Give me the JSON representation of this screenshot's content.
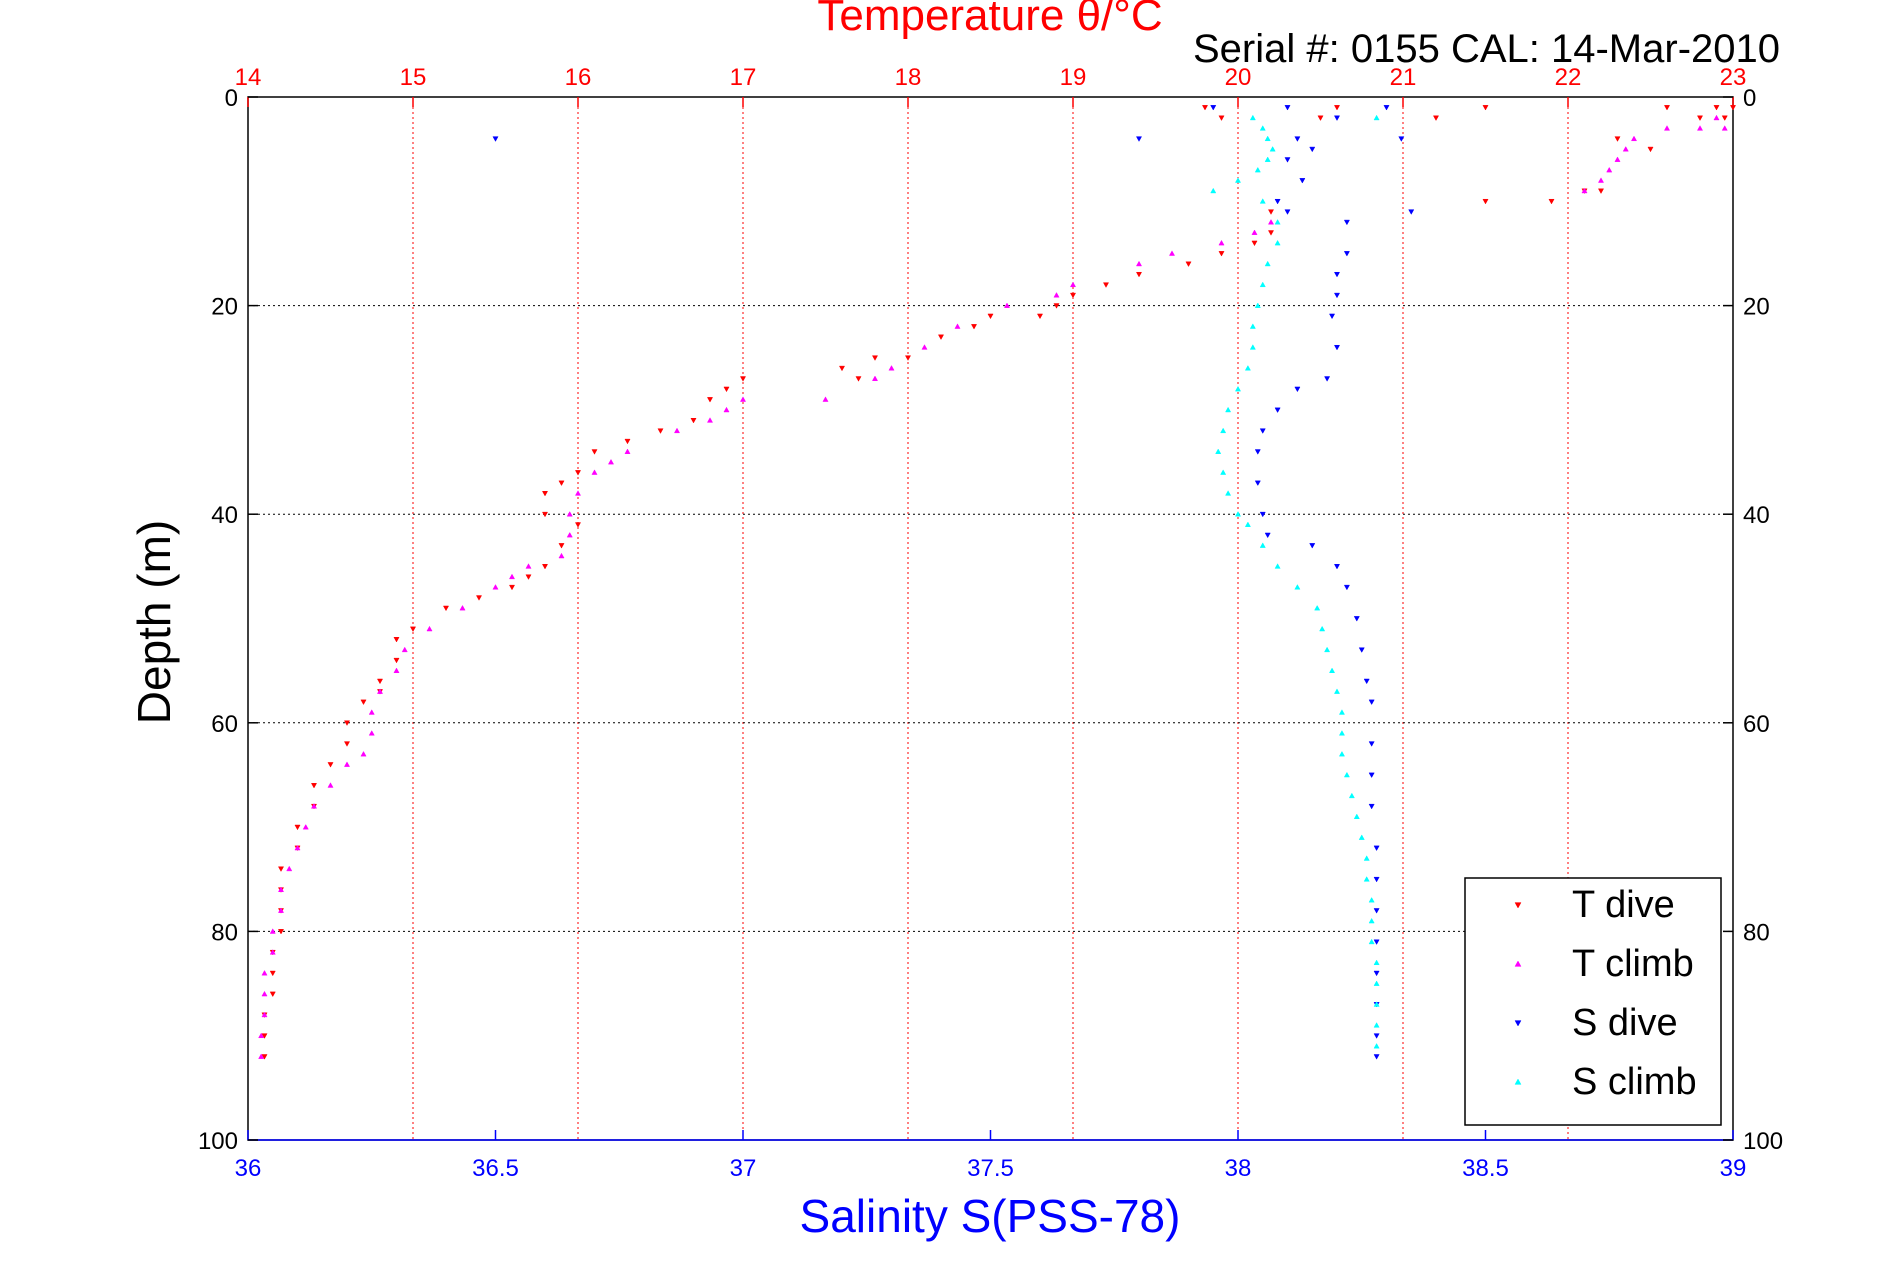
{
  "chart_data": {
    "type": "scatter",
    "title": "Temperature θ/°C",
    "subtitle": "Serial #: 0155  CAL: 14-Mar-2010",
    "ylabel": "Depth (m)",
    "ylim": [
      0,
      100
    ],
    "y_reversed": true,
    "y_ticks": [
      "0",
      "20",
      "40",
      "60",
      "80",
      "100"
    ],
    "x_top": {
      "label": "Temperature θ/°C",
      "range": [
        14,
        23
      ],
      "ticks": [
        "14",
        "15",
        "16",
        "17",
        "18",
        "19",
        "20",
        "21",
        "22",
        "23"
      ]
    },
    "x_bottom": {
      "label": "Salinity S(PSS-78)",
      "range": [
        36,
        39
      ],
      "ticks": [
        "36",
        "36.5",
        "37",
        "37.5",
        "38",
        "38.5",
        "39"
      ]
    },
    "grid": true,
    "legend_position": "bottom-right",
    "colors": {
      "temperature_axis": "#ff0000",
      "salinity_axis": "#0000ff",
      "t_dive": "#ff0000",
      "t_climb": "#ff00ff",
      "s_dive": "#0000ff",
      "s_climb": "#00ffff"
    },
    "series": [
      {
        "name": "T dive",
        "axis": "temperature",
        "marker": "down-triangle",
        "color": "#ff0000",
        "points": [
          [
            19.8,
            1
          ],
          [
            20.6,
            1
          ],
          [
            21.5,
            1
          ],
          [
            22.6,
            1
          ],
          [
            22.9,
            1
          ],
          [
            23.0,
            1
          ],
          [
            19.9,
            2
          ],
          [
            20.5,
            2
          ],
          [
            21.2,
            2
          ],
          [
            22.8,
            2
          ],
          [
            22.95,
            2
          ],
          [
            22.3,
            4
          ],
          [
            22.5,
            5
          ],
          [
            22.2,
            9
          ],
          [
            21.5,
            10
          ],
          [
            21.9,
            10
          ],
          [
            22.1,
            9
          ],
          [
            20.2,
            11
          ],
          [
            20.2,
            13
          ],
          [
            20.1,
            14
          ],
          [
            19.9,
            15
          ],
          [
            19.7,
            16
          ],
          [
            19.4,
            17
          ],
          [
            19.2,
            18
          ],
          [
            19.0,
            19
          ],
          [
            18.9,
            20
          ],
          [
            18.8,
            21
          ],
          [
            18.5,
            21
          ],
          [
            18.4,
            22
          ],
          [
            18.2,
            23
          ],
          [
            18.0,
            25
          ],
          [
            17.8,
            25
          ],
          [
            17.6,
            26
          ],
          [
            17.7,
            27
          ],
          [
            17.0,
            27
          ],
          [
            16.9,
            28
          ],
          [
            16.8,
            29
          ],
          [
            16.7,
            31
          ],
          [
            16.5,
            32
          ],
          [
            16.3,
            33
          ],
          [
            16.1,
            34
          ],
          [
            16.0,
            36
          ],
          [
            15.9,
            37
          ],
          [
            15.8,
            38
          ],
          [
            15.8,
            40
          ],
          [
            16.0,
            41
          ],
          [
            15.9,
            43
          ],
          [
            15.8,
            45
          ],
          [
            15.7,
            46
          ],
          [
            15.6,
            47
          ],
          [
            15.4,
            48
          ],
          [
            15.2,
            49
          ],
          [
            15.0,
            51
          ],
          [
            14.9,
            52
          ],
          [
            14.9,
            54
          ],
          [
            14.8,
            56
          ],
          [
            14.8,
            57
          ],
          [
            14.7,
            58
          ],
          [
            14.6,
            60
          ],
          [
            14.6,
            62
          ],
          [
            14.5,
            64
          ],
          [
            14.4,
            66
          ],
          [
            14.4,
            68
          ],
          [
            14.3,
            70
          ],
          [
            14.3,
            72
          ],
          [
            14.2,
            74
          ],
          [
            14.2,
            76
          ],
          [
            14.2,
            78
          ],
          [
            14.2,
            80
          ],
          [
            14.15,
            82
          ],
          [
            14.15,
            84
          ],
          [
            14.15,
            86
          ],
          [
            14.1,
            88
          ],
          [
            14.1,
            90
          ],
          [
            14.1,
            92
          ]
        ]
      },
      {
        "name": "T climb",
        "axis": "temperature",
        "marker": "up-triangle",
        "color": "#ff00ff",
        "points": [
          [
            22.9,
            2
          ],
          [
            22.95,
            3
          ],
          [
            22.8,
            3
          ],
          [
            22.6,
            3
          ],
          [
            22.4,
            4
          ],
          [
            22.35,
            5
          ],
          [
            22.3,
            6
          ],
          [
            22.25,
            7
          ],
          [
            22.2,
            8
          ],
          [
            22.1,
            9
          ],
          [
            20.2,
            12
          ],
          [
            20.1,
            13
          ],
          [
            19.9,
            14
          ],
          [
            19.6,
            15
          ],
          [
            19.4,
            16
          ],
          [
            19.0,
            18
          ],
          [
            18.9,
            19
          ],
          [
            18.6,
            20
          ],
          [
            18.3,
            22
          ],
          [
            18.1,
            24
          ],
          [
            17.9,
            26
          ],
          [
            17.8,
            27
          ],
          [
            17.5,
            29
          ],
          [
            17.0,
            29
          ],
          [
            16.9,
            30
          ],
          [
            16.8,
            31
          ],
          [
            16.6,
            32
          ],
          [
            16.3,
            34
          ],
          [
            16.2,
            35
          ],
          [
            16.1,
            36
          ],
          [
            16.0,
            38
          ],
          [
            15.95,
            40
          ],
          [
            15.95,
            42
          ],
          [
            15.9,
            44
          ],
          [
            15.7,
            45
          ],
          [
            15.6,
            46
          ],
          [
            15.5,
            47
          ],
          [
            15.3,
            49
          ],
          [
            15.1,
            51
          ],
          [
            14.95,
            53
          ],
          [
            14.9,
            55
          ],
          [
            14.8,
            57
          ],
          [
            14.75,
            59
          ],
          [
            14.75,
            61
          ],
          [
            14.7,
            63
          ],
          [
            14.6,
            64
          ],
          [
            14.5,
            66
          ],
          [
            14.4,
            68
          ],
          [
            14.35,
            70
          ],
          [
            14.3,
            72
          ],
          [
            14.25,
            74
          ],
          [
            14.2,
            76
          ],
          [
            14.2,
            78
          ],
          [
            14.15,
            80
          ],
          [
            14.15,
            82
          ],
          [
            14.1,
            84
          ],
          [
            14.1,
            86
          ],
          [
            14.1,
            88
          ],
          [
            14.08,
            90
          ],
          [
            14.08,
            92
          ]
        ]
      },
      {
        "name": "S dive",
        "axis": "salinity",
        "marker": "down-triangle",
        "color": "#0000ff",
        "points": [
          [
            36.5,
            4
          ],
          [
            37.8,
            4
          ],
          [
            37.95,
            1
          ],
          [
            38.1,
            1
          ],
          [
            38.2,
            2
          ],
          [
            38.3,
            1
          ],
          [
            38.12,
            4
          ],
          [
            38.15,
            5
          ],
          [
            38.1,
            6
          ],
          [
            38.13,
            8
          ],
          [
            38.08,
            10
          ],
          [
            38.1,
            11
          ],
          [
            38.33,
            4
          ],
          [
            38.35,
            11
          ],
          [
            38.22,
            12
          ],
          [
            38.22,
            15
          ],
          [
            38.2,
            17
          ],
          [
            38.2,
            19
          ],
          [
            38.19,
            21
          ],
          [
            38.2,
            24
          ],
          [
            38.18,
            27
          ],
          [
            38.12,
            28
          ],
          [
            38.08,
            30
          ],
          [
            38.05,
            32
          ],
          [
            38.04,
            34
          ],
          [
            38.04,
            37
          ],
          [
            38.05,
            40
          ],
          [
            38.06,
            42
          ],
          [
            38.15,
            43
          ],
          [
            38.2,
            45
          ],
          [
            38.22,
            47
          ],
          [
            38.24,
            50
          ],
          [
            38.25,
            53
          ],
          [
            38.26,
            56
          ],
          [
            38.27,
            58
          ],
          [
            38.27,
            62
          ],
          [
            38.27,
            65
          ],
          [
            38.27,
            68
          ],
          [
            38.28,
            72
          ],
          [
            38.28,
            75
          ],
          [
            38.28,
            78
          ],
          [
            38.28,
            81
          ],
          [
            38.28,
            84
          ],
          [
            38.28,
            87
          ],
          [
            38.28,
            90
          ],
          [
            38.28,
            92
          ]
        ]
      },
      {
        "name": "S climb",
        "axis": "salinity",
        "marker": "up-triangle",
        "color": "#00ffff",
        "points": [
          [
            38.28,
            2
          ],
          [
            38.03,
            2
          ],
          [
            38.05,
            3
          ],
          [
            38.06,
            4
          ],
          [
            38.07,
            5
          ],
          [
            38.06,
            6
          ],
          [
            38.04,
            7
          ],
          [
            38.0,
            8
          ],
          [
            37.95,
            9
          ],
          [
            38.05,
            10
          ],
          [
            38.08,
            12
          ],
          [
            38.08,
            14
          ],
          [
            38.06,
            16
          ],
          [
            38.05,
            18
          ],
          [
            38.04,
            20
          ],
          [
            38.03,
            22
          ],
          [
            38.03,
            24
          ],
          [
            38.02,
            26
          ],
          [
            38.0,
            28
          ],
          [
            37.98,
            30
          ],
          [
            37.97,
            32
          ],
          [
            37.96,
            34
          ],
          [
            37.97,
            36
          ],
          [
            37.98,
            38
          ],
          [
            38.0,
            40
          ],
          [
            38.02,
            41
          ],
          [
            38.05,
            43
          ],
          [
            38.08,
            45
          ],
          [
            38.12,
            47
          ],
          [
            38.16,
            49
          ],
          [
            38.17,
            51
          ],
          [
            38.18,
            53
          ],
          [
            38.19,
            55
          ],
          [
            38.2,
            57
          ],
          [
            38.21,
            59
          ],
          [
            38.21,
            61
          ],
          [
            38.21,
            63
          ],
          [
            38.22,
            65
          ],
          [
            38.23,
            67
          ],
          [
            38.24,
            69
          ],
          [
            38.25,
            71
          ],
          [
            38.26,
            73
          ],
          [
            38.26,
            75
          ],
          [
            38.27,
            77
          ],
          [
            38.27,
            79
          ],
          [
            38.27,
            81
          ],
          [
            38.28,
            83
          ],
          [
            38.28,
            85
          ],
          [
            38.28,
            87
          ],
          [
            38.28,
            89
          ],
          [
            38.28,
            91
          ]
        ]
      }
    ]
  }
}
